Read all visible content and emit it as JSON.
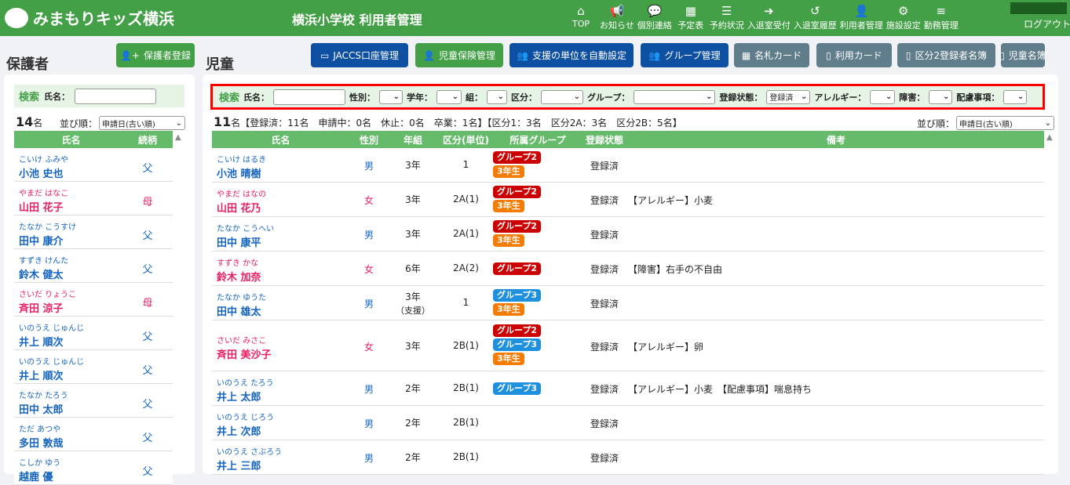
{
  "header": {
    "logo": "みまもりキッズ横浜",
    "title": "横浜小学校 利用者管理",
    "nav": [
      {
        "label": "TOP",
        "icon": "home-icon",
        "g": "⌂"
      },
      {
        "label": "お知らせ",
        "icon": "megaphone-icon",
        "g": "📢"
      },
      {
        "label": "個別連絡",
        "icon": "chat-icon",
        "g": "💬"
      },
      {
        "label": "予定表",
        "icon": "calendar-icon",
        "g": "▦"
      },
      {
        "label": "予約状況",
        "icon": "list-icon",
        "g": "☰"
      },
      {
        "label": "入退室受付",
        "icon": "sign-in-icon",
        "g": "➜"
      },
      {
        "label": "入退室履歴",
        "icon": "history-icon",
        "g": "↺"
      },
      {
        "label": "利用者管理",
        "icon": "user-edit-icon",
        "g": "👤"
      },
      {
        "label": "施設設定",
        "icon": "gear-icon",
        "g": "⚙"
      },
      {
        "label": "勤務管理",
        "icon": "server-icon",
        "g": "≡"
      }
    ],
    "logout": "ログアウト"
  },
  "guardians": {
    "heading": "保護者",
    "register": "保護者登録",
    "search_label": "検索",
    "name_label": "氏名：",
    "count": "14",
    "count_unit": "名",
    "sort_label": "並び順：",
    "sort_value": "申請日(古い順)",
    "cols": [
      "氏名",
      "続柄"
    ],
    "rows": [
      [
        "こいけ ふみや",
        "小池 史也",
        "父",
        "m"
      ],
      [
        "やまだ はなこ",
        "山田 花子",
        "母",
        "f"
      ],
      [
        "たなか こうすけ",
        "田中 康介",
        "父",
        "m"
      ],
      [
        "すずき けんた",
        "鈴木 健太",
        "父",
        "m"
      ],
      [
        "さいだ りょうこ",
        "斉田 涼子",
        "母",
        "f"
      ],
      [
        "いのうえ じゅんじ",
        "井上 順次",
        "父",
        "m"
      ],
      [
        "いのうえ じゅんじ",
        "井上 順次",
        "父",
        "m"
      ],
      [
        "たなか たろう",
        "田中 太郎",
        "父",
        "m"
      ],
      [
        "ただ あつや",
        "多田 敦哉",
        "父",
        "m"
      ],
      [
        "こしか ゆう",
        "越鹿 優",
        "父",
        "m"
      ]
    ]
  },
  "children": {
    "heading": "児童",
    "buttons": [
      {
        "label": "JACCS口座管理",
        "icon": "card-icon",
        "g": "▭",
        "c": "b"
      },
      {
        "label": "児童保険管理",
        "icon": "user-shield-icon",
        "g": "👤",
        "c": "g"
      },
      {
        "label": "支援の単位を自動設定",
        "icon": "users-icon",
        "g": "👥",
        "c": "b"
      },
      {
        "label": "グループ管理",
        "icon": "users-icon",
        "g": "👥",
        "c": "b"
      },
      {
        "label": "名札カード",
        "icon": "grid-icon",
        "g": "▦",
        "c": "s"
      },
      {
        "label": "利用カード",
        "icon": "file-icon",
        "g": "▯",
        "c": "s"
      },
      {
        "label": "区分2登録者名簿",
        "icon": "file-icon",
        "g": "▯",
        "c": "s"
      },
      {
        "label": "児童名簿",
        "icon": "file-icon",
        "g": "▯",
        "c": "s"
      }
    ],
    "search": {
      "label": "検索",
      "name": "氏名：",
      "gender": "性別：",
      "grade": "学年：",
      "class": "組：",
      "division": "区分：",
      "group": "グループ：",
      "status": "登録状態：",
      "status_value": "登録済",
      "allergy": "アレルギー：",
      "disability": "障害：",
      "consideration": "配慮事項："
    },
    "count": "11",
    "summary": "名【登録済：11名　申請中：0名　休止：0名　卒業：1名】【区分1：3名　区分2A：3名　区分2B：5名】",
    "sort_label": "並び順：",
    "sort_value": "申請日(古い順)",
    "cols": [
      "氏名",
      "性別",
      "年組",
      "区分(単位)",
      "所属グループ",
      "登録状態",
      "備考"
    ],
    "rows": [
      {
        "kana": "こいけ はるき",
        "name": "小池 晴樹",
        "sex": "男",
        "g": "m",
        "grade": "3年",
        "div": "1",
        "groups": [
          "グループ2",
          "3年生"
        ],
        "status": "登録済",
        "note": ""
      },
      {
        "kana": "やまだ はなの",
        "name": "山田 花乃",
        "sex": "女",
        "g": "f",
        "grade": "3年",
        "div": "2A(1)",
        "groups": [
          "グループ2",
          "3年生"
        ],
        "status": "登録済",
        "note": "【アレルギー】小麦"
      },
      {
        "kana": "たなか こうへい",
        "name": "田中 康平",
        "sex": "男",
        "g": "m",
        "grade": "3年",
        "div": "2A(1)",
        "groups": [
          "グループ2",
          "3年生"
        ],
        "status": "登録済",
        "note": ""
      },
      {
        "kana": "すずき かな",
        "name": "鈴木 加奈",
        "sex": "女",
        "g": "f",
        "grade": "6年",
        "div": "2A(2)",
        "groups": [
          "グループ2"
        ],
        "status": "登録済",
        "note": "【障害】右手の不自由"
      },
      {
        "kana": "たなか ゆうた",
        "name": "田中 雄太",
        "sex": "男",
        "g": "m",
        "grade": "3年",
        "grade2": "（支援）",
        "div": "1",
        "groups": [
          "グループ3",
          "3年生"
        ],
        "status": "登録済",
        "note": ""
      },
      {
        "kana": "さいだ みさこ",
        "name": "斉田 美沙子",
        "sex": "女",
        "g": "f",
        "grade": "3年",
        "div": "2B(1)",
        "groups": [
          "グループ2",
          "グループ3",
          "3年生"
        ],
        "status": "登録済",
        "note": "【アレルギー】卵"
      },
      {
        "kana": "いのうえ たろう",
        "name": "井上 太郎",
        "sex": "男",
        "g": "m",
        "grade": "2年",
        "div": "2B(1)",
        "groups": [
          "グループ3"
        ],
        "status": "登録済",
        "note": "【アレルギー】小麦　【配慮事項】喘息持ち"
      },
      {
        "kana": "いのうえ じろう",
        "name": "井上 次郎",
        "sex": "男",
        "g": "m",
        "grade": "2年",
        "div": "2B(1)",
        "groups": [],
        "status": "登録済",
        "note": ""
      },
      {
        "kana": "いのうえ さぶろう",
        "name": "井上 三郎",
        "sex": "男",
        "g": "m",
        "grade": "2年",
        "div": "2B(1)",
        "groups": [],
        "status": "登録済",
        "note": ""
      }
    ]
  },
  "colors": {
    "header": "#43a047",
    "male": "#1565c0",
    "female": "#e91e63",
    "グループ2": "#cc0000",
    "グループ3": "#1e90dd",
    "3年生": "#f57c00",
    "highlight": "#ff0000"
  }
}
